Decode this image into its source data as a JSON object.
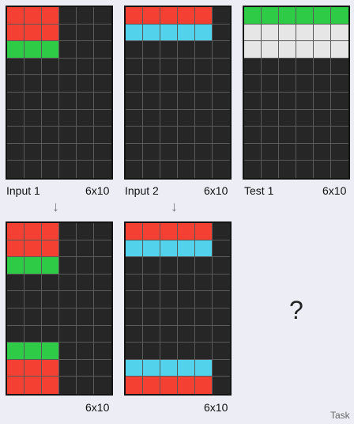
{
  "colors": {
    "K": "#262626",
    "R": "#f43f33",
    "G": "#2ecc46",
    "C": "#52d3eb",
    "W": "#e6e6e6"
  },
  "panels": [
    {
      "id": "input-1",
      "name": "Input 1",
      "size": "6x10",
      "rows": [
        "RRRKKK",
        "RRRKKK",
        "GGGKKK",
        "KKKKKK",
        "KKKKKK",
        "KKKKKK",
        "KKKKKK",
        "KKKKKK",
        "KKKKKK",
        "KKKKKK"
      ]
    },
    {
      "id": "input-2",
      "name": "Input 2",
      "size": "6x10",
      "rows": [
        "RRRRRK",
        "CCCCCK",
        "KKKKKK",
        "KKKKKK",
        "KKKKKK",
        "KKKKKK",
        "KKKKKK",
        "KKKKKK",
        "KKKKKK",
        "KKKKKK"
      ]
    },
    {
      "id": "test-1",
      "name": "Test 1",
      "size": "6x10",
      "rows": [
        "GGGGGG",
        "WWWWWW",
        "WWWWWW",
        "KKKKKK",
        "KKKKKK",
        "KKKKKK",
        "KKKKKK",
        "KKKKKK",
        "KKKKKK",
        "KKKKKK"
      ]
    },
    {
      "id": "output-1",
      "name": "",
      "size": "6x10",
      "rows": [
        "RRRKKK",
        "RRRKKK",
        "GGGKKK",
        "KKKKKK",
        "KKKKKK",
        "KKKKKK",
        "KKKKKK",
        "GGGKKK",
        "RRRKKK",
        "RRRKKK"
      ]
    },
    {
      "id": "output-2",
      "name": "",
      "size": "6x10",
      "rows": [
        "RRRRRK",
        "CCCCCK",
        "KKKKKK",
        "KKKKKK",
        "KKKKKK",
        "KKKKKK",
        "KKKKKK",
        "KKKKKK",
        "CCCCCK",
        "RRRRRK"
      ]
    }
  ],
  "arrow_glyph": "↓",
  "unknown_output": "?",
  "footer_text": "Task"
}
